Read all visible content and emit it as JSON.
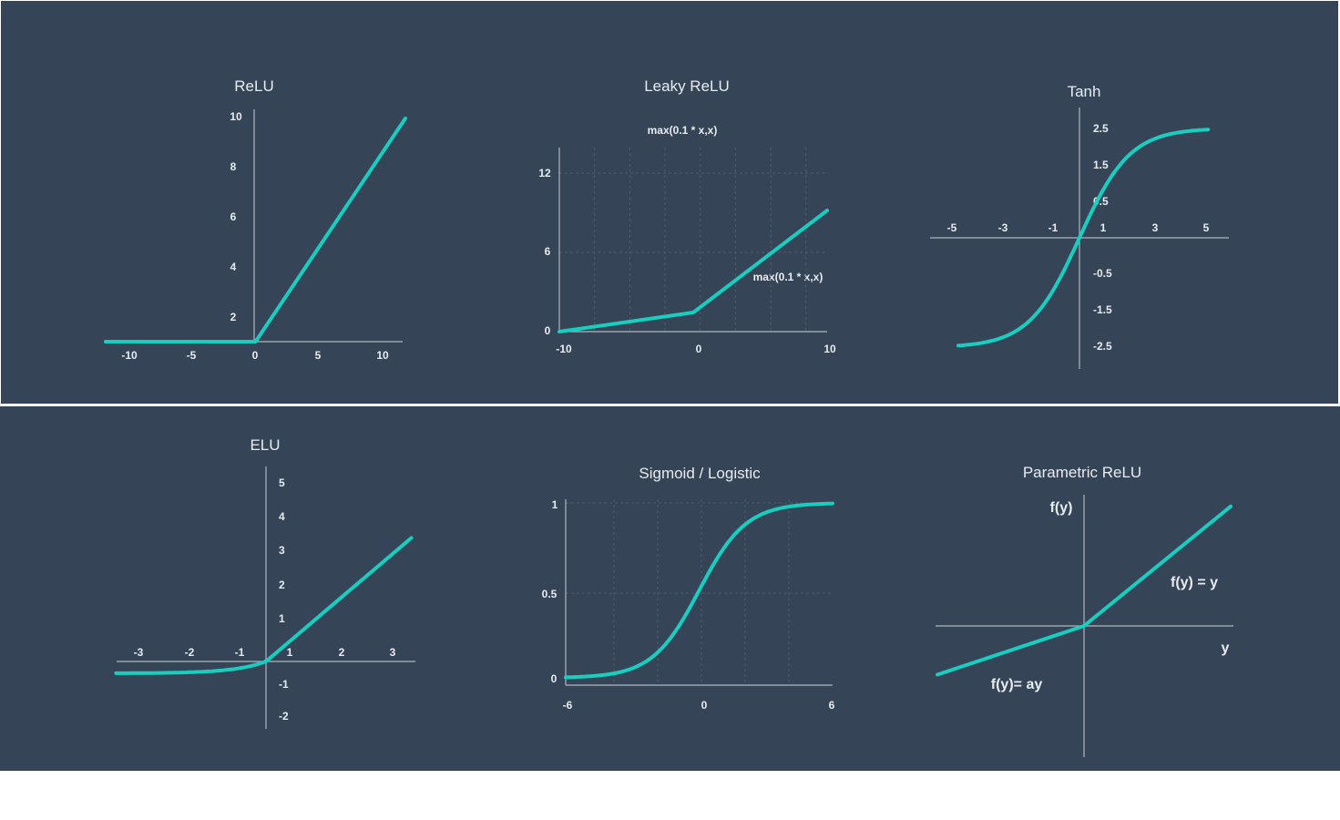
{
  "chart_data": [
    {
      "id": "relu",
      "type": "line",
      "title": "ReLU",
      "x": [
        -12,
        0,
        12
      ],
      "y": [
        0,
        0,
        10
      ],
      "xlim": [
        -12,
        12
      ],
      "ylim": [
        0,
        10
      ],
      "xticks": [
        "-10",
        "-5",
        "0",
        "5",
        "10"
      ],
      "yticks": [
        "2",
        "4",
        "6",
        "8",
        "10"
      ],
      "grid": false
    },
    {
      "id": "leaky",
      "type": "line",
      "title": "Leaky ReLU",
      "x": [
        -10,
        0,
        10
      ],
      "y": [
        0,
        1.5,
        9.5
      ],
      "xlim": [
        -10,
        10
      ],
      "ylim": [
        0,
        14
      ],
      "xticks": [
        "-10",
        "0",
        "10"
      ],
      "yticks": [
        "0",
        "6",
        "12"
      ],
      "annotations": [
        "max(0.1 * x,x)",
        "max(0.1 * x,x)"
      ],
      "grid": true
    },
    {
      "id": "tanh",
      "type": "line",
      "title": "Tanh",
      "xlim": [
        -6,
        6
      ],
      "ylim": [
        -3.5,
        3.5
      ],
      "xticks": [
        "-5",
        "-3",
        "-1",
        "1",
        "3",
        "5"
      ],
      "yticks": [
        "2.5",
        "1.5",
        "0.5",
        "-0.5",
        "-1.5",
        "-2.5"
      ],
      "grid": false
    },
    {
      "id": "elu",
      "type": "line",
      "title": "ELU",
      "xlim": [
        -3,
        3
      ],
      "ylim": [
        -2,
        5
      ],
      "xticks": [
        "-3",
        "-2",
        "-1",
        "1",
        "2",
        "3"
      ],
      "yticks": [
        "5",
        "4",
        "3",
        "2",
        "1",
        "-1",
        "-2"
      ],
      "grid": false
    },
    {
      "id": "sigmoid",
      "type": "line",
      "title": "Sigmoid / Logistic",
      "xlim": [
        -6,
        6
      ],
      "ylim": [
        0,
        1
      ],
      "xticks": [
        "-6",
        "0",
        "6"
      ],
      "yticks": [
        "1",
        "0.5",
        "0"
      ],
      "grid": true
    },
    {
      "id": "prelu",
      "type": "line",
      "title": "Parametric ReLU",
      "x": [
        -1,
        0,
        1
      ],
      "y": [
        -0.33,
        0,
        0.81
      ],
      "xlim": [
        -1,
        1
      ],
      "ylim": [
        -0.9,
        0.9
      ],
      "ylabel": "f(y)",
      "xlabel": "y",
      "annotations": [
        "f(y) = y",
        "f(y)= ay"
      ],
      "grid": false
    }
  ],
  "colors": {
    "background": "#354456",
    "curve": "#16cfc0",
    "text": "#e8ecf0",
    "axis": "#aeb6c0"
  }
}
